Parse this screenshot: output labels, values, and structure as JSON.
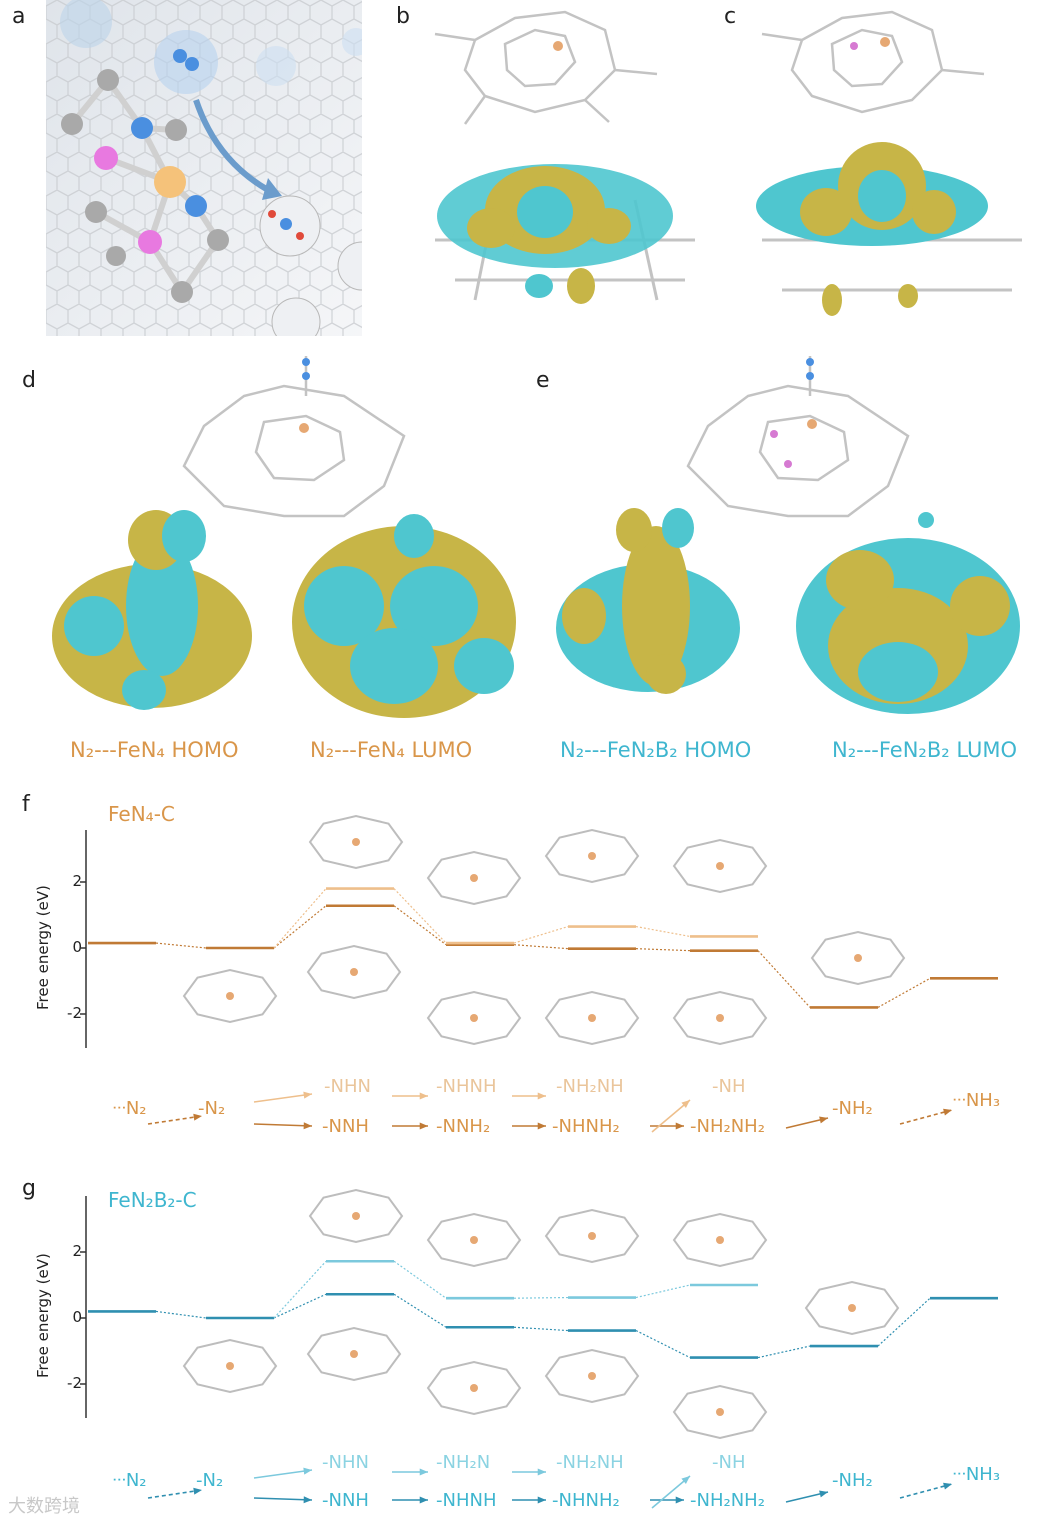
{
  "panels": {
    "a": "a",
    "b": "b",
    "c": "c",
    "d": "d",
    "e": "e",
    "f": "f",
    "g": "g"
  },
  "orbital_labels": {
    "d_homo": "N₂---FeN₄  HOMO",
    "d_lumo": "N₂---FeN₄ LUMO",
    "e_homo": "N₂---FeN₂B₂ HOMO",
    "e_lumo": "N₂---FeN₂B₂ LUMO"
  },
  "colors": {
    "fe_orange": "#c07a35",
    "fe_orange_light": "#eebf8c",
    "b_blue": "#2f8fb0",
    "b_blue_light": "#7cc9dd",
    "iso_yellow": "#c7b547",
    "iso_cyan": "#4fc6cf",
    "graphene": "#b9b9b9",
    "atom_n": "#4a8fe0",
    "atom_b": "#e879e0",
    "atom_fe": "#f2b46a"
  },
  "chart_data": [
    {
      "type": "line",
      "panel": "f",
      "title": "FeN₄-C",
      "ylabel": "Free energy (eV)",
      "yticks": [
        "2",
        "0",
        "-2"
      ],
      "ylim": [
        -3.1,
        3.3
      ],
      "steps": [
        "ᐧᐧᐧN₂",
        "-N₂",
        "-NNH / -NHN",
        "-NNH₂ / -NHNH",
        "-NHNH₂ / -NH₂NH",
        "-NH₂NH₂ / -NH",
        "-NH₂",
        "ᐧᐧᐧNH₃"
      ],
      "series": [
        {
          "values": [
            0.15,
            0.0,
            1.28,
            0.1,
            -0.02,
            -0.08,
            -1.8,
            -0.92
          ]
        },
        {
          "values": [
            null,
            null,
            1.8,
            0.15,
            0.65,
            0.35,
            null,
            null
          ]
        }
      ],
      "pathway_main": [
        "ᐧᐧᐧN₂",
        "-N₂",
        "-NNH",
        "-NNH₂",
        "-NHNH₂",
        "-NH₂NH₂",
        "-NH₂",
        "ᐧᐧᐧNH₃"
      ],
      "pathway_alt": [
        "-NHN",
        "-NHNH",
        "-NH₂NH",
        "-NH"
      ]
    },
    {
      "type": "line",
      "panel": "g",
      "title": "FeN₂B₂-C",
      "ylabel": "Free energy (eV)",
      "yticks": [
        "2",
        "0",
        "-2"
      ],
      "ylim": [
        -3.1,
        3.3
      ],
      "steps": [
        "ᐧᐧᐧN₂",
        "-N₂",
        "-NNH / -NHN",
        "-NHNH / -NH₂N",
        "-NHNH₂ / -NH₂NH",
        "-NH₂NH₂ / -NH",
        "-NH₂",
        "ᐧᐧᐧNH₃"
      ],
      "series": [
        {
          "values": [
            0.2,
            0.0,
            0.72,
            -0.28,
            -0.38,
            -1.2,
            -0.85,
            0.6
          ]
        },
        {
          "values": [
            null,
            null,
            1.72,
            0.6,
            0.62,
            1.0,
            null,
            null
          ]
        }
      ],
      "pathway_main": [
        "ᐧᐧᐧN₂",
        "-N₂",
        "-NNH",
        "-NHNH",
        "-NHNH₂",
        "-NH₂NH₂",
        "-NH₂",
        "ᐧᐧᐧNH₃"
      ],
      "pathway_alt": [
        "-NHN",
        "-NH₂N",
        "-NH₂NH",
        "-NH"
      ]
    }
  ],
  "watermark": "大数跨境"
}
